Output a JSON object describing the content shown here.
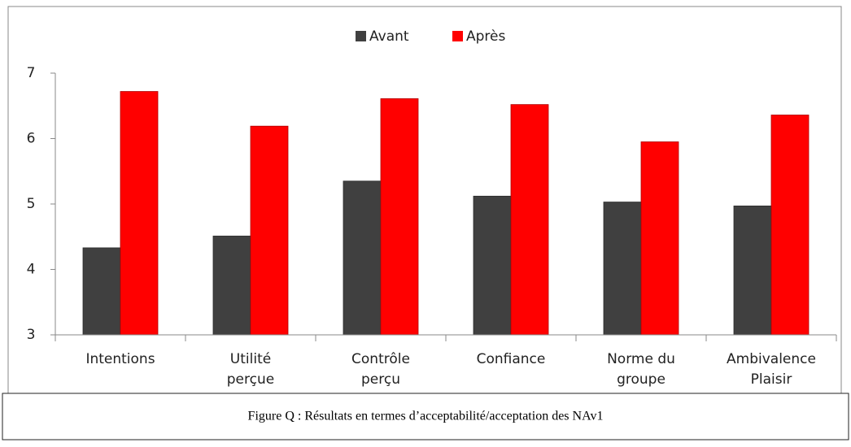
{
  "chart_data": {
    "type": "bar",
    "categories": [
      "Intentions",
      "Utilité\nperçue",
      "Contrôle\nperçu",
      "Confiance",
      "Norme du\ngroupe",
      "Ambivalence\nPlaisir"
    ],
    "series": [
      {
        "name": "Avant",
        "color": "#404040",
        "values": [
          4.33,
          4.51,
          5.35,
          5.12,
          5.03,
          4.97
        ]
      },
      {
        "name": "Après",
        "color": "#ff0000",
        "values": [
          6.72,
          6.19,
          6.61,
          6.52,
          5.95,
          6.36
        ]
      }
    ],
    "ylim": [
      3,
      7
    ],
    "yticks": [
      3,
      4,
      5,
      6,
      7
    ],
    "legend": "top",
    "caption": "Figure Q : Résultats en termes d’acceptabilité/acceptation des NAv1"
  }
}
